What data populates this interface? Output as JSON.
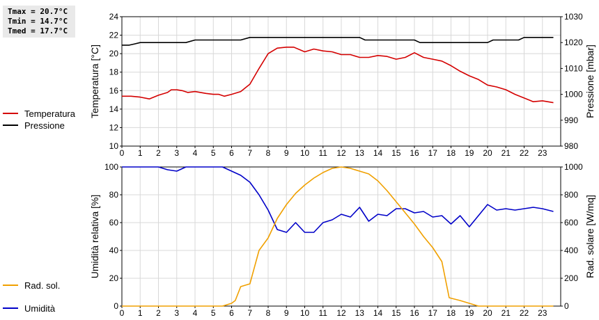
{
  "summary": {
    "tmax": "Tmax = 20.7°C",
    "tmin": "Tmin = 14.7°C",
    "tmed": "Tmed = 17.7°C"
  },
  "chart_data": [
    {
      "type": "line",
      "xlabel": "",
      "xlim": [
        0,
        24
      ],
      "xticks": [
        "0",
        "1",
        "2",
        "3",
        "4",
        "5",
        "6",
        "7",
        "8",
        "9",
        "10",
        "11",
        "12",
        "13",
        "14",
        "15",
        "16",
        "17",
        "18",
        "19",
        "20",
        "21",
        "22",
        "23"
      ],
      "ylabel_left": "Temperatura [°C]",
      "ylim_left": [
        10,
        24
      ],
      "yticks_left": [
        "10",
        "12",
        "14",
        "16",
        "18",
        "20",
        "22",
        "24"
      ],
      "ylabel_right": "Pressione [mbar]",
      "ylim_right": [
        980,
        1030
      ],
      "yticks_right": [
        "980",
        "990",
        "1000",
        "1010",
        "1020",
        "1030"
      ],
      "grid": true,
      "legend": "left",
      "series": [
        {
          "name": "Temperatura",
          "axis": "left",
          "color": "#d40000",
          "points": [
            [
              0,
              15.4
            ],
            [
              0.5,
              15.4
            ],
            [
              1,
              15.3
            ],
            [
              1.5,
              15.1
            ],
            [
              2,
              15.5
            ],
            [
              2.5,
              15.8
            ],
            [
              2.7,
              16.1
            ],
            [
              3,
              16.1
            ],
            [
              3.3,
              16.0
            ],
            [
              3.6,
              15.8
            ],
            [
              4,
              15.9
            ],
            [
              4.3,
              15.8
            ],
            [
              4.6,
              15.7
            ],
            [
              5,
              15.6
            ],
            [
              5.3,
              15.6
            ],
            [
              5.6,
              15.4
            ],
            [
              6,
              15.6
            ],
            [
              6.5,
              15.9
            ],
            [
              7,
              16.7
            ],
            [
              7.5,
              18.4
            ],
            [
              8,
              20.0
            ],
            [
              8.5,
              20.6
            ],
            [
              9,
              20.7
            ],
            [
              9.4,
              20.7
            ],
            [
              10,
              20.2
            ],
            [
              10.5,
              20.5
            ],
            [
              11,
              20.3
            ],
            [
              11.5,
              20.2
            ],
            [
              12,
              19.9
            ],
            [
              12.5,
              19.9
            ],
            [
              13,
              19.6
            ],
            [
              13.5,
              19.6
            ],
            [
              14,
              19.8
            ],
            [
              14.5,
              19.7
            ],
            [
              15,
              19.4
            ],
            [
              15.5,
              19.6
            ],
            [
              16,
              20.1
            ],
            [
              16.5,
              19.6
            ],
            [
              17,
              19.4
            ],
            [
              17.5,
              19.2
            ],
            [
              18,
              18.7
            ],
            [
              18.5,
              18.1
            ],
            [
              19,
              17.6
            ],
            [
              19.5,
              17.2
            ],
            [
              20,
              16.6
            ],
            [
              20.5,
              16.4
            ],
            [
              21,
              16.1
            ],
            [
              21.5,
              15.6
            ],
            [
              22,
              15.2
            ],
            [
              22.5,
              14.8
            ],
            [
              23,
              14.9
            ],
            [
              23.6,
              14.7
            ]
          ]
        },
        {
          "name": "Pressione",
          "axis": "right",
          "color": "#000000",
          "points": [
            [
              0,
              1019
            ],
            [
              0.4,
              1019
            ],
            [
              0.7,
              1019.5
            ],
            [
              1,
              1020
            ],
            [
              3.5,
              1020
            ],
            [
              4,
              1021
            ],
            [
              6.5,
              1021
            ],
            [
              7,
              1022
            ],
            [
              13,
              1022
            ],
            [
              13.3,
              1021
            ],
            [
              16,
              1021
            ],
            [
              16.3,
              1020
            ],
            [
              20,
              1020
            ],
            [
              20.3,
              1021
            ],
            [
              21.7,
              1021
            ],
            [
              22,
              1022
            ],
            [
              23.6,
              1022
            ]
          ]
        }
      ]
    },
    {
      "type": "line",
      "xlabel": "",
      "xlim": [
        0,
        24
      ],
      "xticks": [
        "0",
        "1",
        "2",
        "3",
        "4",
        "5",
        "6",
        "7",
        "8",
        "9",
        "10",
        "11",
        "12",
        "13",
        "14",
        "15",
        "16",
        "17",
        "18",
        "19",
        "20",
        "21",
        "22",
        "23"
      ],
      "ylabel_left": "Umidità relativa [%]",
      "ylim_left": [
        0,
        100
      ],
      "yticks_left": [
        "0",
        "20",
        "40",
        "60",
        "80",
        "100"
      ],
      "ylabel_right": "Rad. solare [W/mq]",
      "ylim_right": [
        0,
        1000
      ],
      "yticks_right": [
        "0",
        "200",
        "400",
        "600",
        "800",
        "1000"
      ],
      "grid": true,
      "legend": "left",
      "series": [
        {
          "name": "Umidità",
          "axis": "left",
          "color": "#0000c8",
          "points": [
            [
              0,
              100
            ],
            [
              2,
              100
            ],
            [
              2.5,
              98
            ],
            [
              3,
              97
            ],
            [
              3.5,
              100
            ],
            [
              5.5,
              100
            ],
            [
              6,
              97
            ],
            [
              6.5,
              94
            ],
            [
              7,
              89
            ],
            [
              7.5,
              80
            ],
            [
              8,
              69
            ],
            [
              8.5,
              55
            ],
            [
              9,
              53
            ],
            [
              9.5,
              60
            ],
            [
              10,
              53
            ],
            [
              10.5,
              53
            ],
            [
              11,
              60
            ],
            [
              11.5,
              62
            ],
            [
              12,
              66
            ],
            [
              12.5,
              64
            ],
            [
              13,
              71
            ],
            [
              13.5,
              61
            ],
            [
              14,
              66
            ],
            [
              14.5,
              65
            ],
            [
              15,
              70
            ],
            [
              15.5,
              70
            ],
            [
              16,
              67
            ],
            [
              16.5,
              68
            ],
            [
              17,
              64
            ],
            [
              17.5,
              65
            ],
            [
              18,
              59
            ],
            [
              18.5,
              65
            ],
            [
              19,
              57
            ],
            [
              19.5,
              65
            ],
            [
              20,
              73
            ],
            [
              20.5,
              69
            ],
            [
              21,
              70
            ],
            [
              21.5,
              69
            ],
            [
              22,
              70
            ],
            [
              22.5,
              71
            ],
            [
              23,
              70
            ],
            [
              23.6,
              68
            ]
          ]
        },
        {
          "name": "Rad. sol.",
          "axis": "right",
          "color": "#f0a000",
          "points": [
            [
              0,
              0
            ],
            [
              5.5,
              0
            ],
            [
              6,
              20
            ],
            [
              6.2,
              40
            ],
            [
              6.5,
              140
            ],
            [
              7,
              160
            ],
            [
              7.5,
              400
            ],
            [
              8,
              490
            ],
            [
              8.5,
              630
            ],
            [
              9,
              730
            ],
            [
              9.5,
              810
            ],
            [
              10,
              870
            ],
            [
              10.5,
              920
            ],
            [
              11,
              960
            ],
            [
              11.5,
              990
            ],
            [
              12,
              1000
            ],
            [
              12.5,
              990
            ],
            [
              13,
              970
            ],
            [
              13.5,
              950
            ],
            [
              14,
              900
            ],
            [
              14.5,
              830
            ],
            [
              15,
              750
            ],
            [
              15.5,
              670
            ],
            [
              16,
              590
            ],
            [
              16.5,
              500
            ],
            [
              17,
              420
            ],
            [
              17.5,
              320
            ],
            [
              17.9,
              60
            ],
            [
              18.5,
              40
            ],
            [
              19,
              20
            ],
            [
              19.5,
              0
            ],
            [
              23.6,
              0
            ]
          ]
        }
      ]
    }
  ]
}
